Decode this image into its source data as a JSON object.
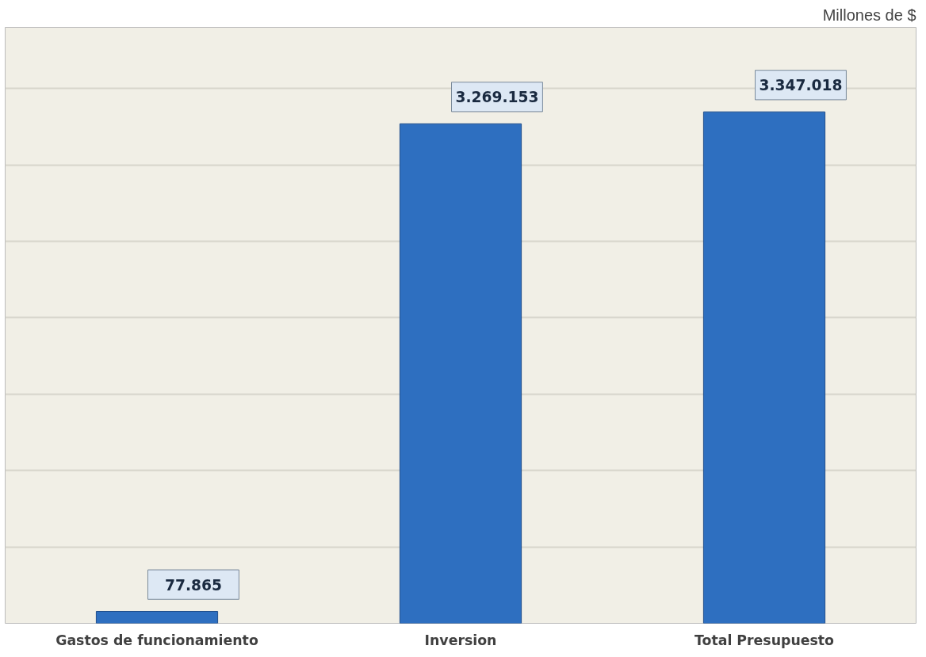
{
  "chart_data": {
    "type": "bar",
    "categories": [
      "Gastos de funcionamiento",
      "Inversion",
      "Total Presupuesto"
    ],
    "values": [
      77865,
      3269153,
      3347018
    ],
    "color": "#2e6fc0",
    "value_labels": [
      "77.865",
      "3.269.153",
      "3.347.018"
    ],
    "ylim": [
      0,
      3900000
    ],
    "yticks": [
      {
        "value": 500000,
        "label": null
      },
      {
        "value": 1000000,
        "label": null
      },
      {
        "value": 1500000,
        "label": null
      },
      {
        "value": 2000000,
        "label": null
      },
      {
        "value": 2500000,
        "label": null
      },
      {
        "value": 3000000,
        "label": null
      },
      {
        "value": 3500000,
        "label": null
      }
    ],
    "grid": "y",
    "annotations": [
      "Millones de $"
    ]
  }
}
